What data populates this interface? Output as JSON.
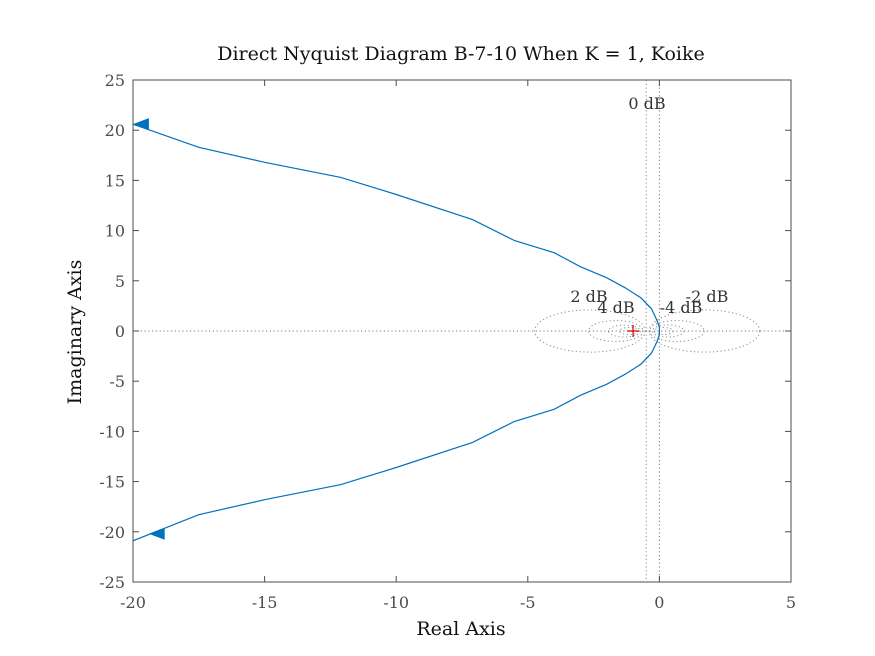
{
  "chart_data": {
    "type": "line",
    "title": "Direct Nyquist Diagram B-7-10 When K = 1, Koike",
    "xlabel": "Real Axis",
    "ylabel": "Imaginary Axis",
    "xlim": [
      -20,
      5
    ],
    "ylim": [
      -25,
      25
    ],
    "xticks": [
      -20,
      -15,
      -10,
      -5,
      0,
      5
    ],
    "yticks": [
      -25,
      -20,
      -15,
      -10,
      -5,
      0,
      5,
      10,
      15,
      20,
      25
    ],
    "xtick_labels": [
      "-20",
      "-15",
      "-10",
      "-5",
      "0",
      "5"
    ],
    "ytick_labels": [
      "-25",
      "-20",
      "-15",
      "-10",
      "-5",
      "0",
      "5",
      "10",
      "15",
      "20",
      "25"
    ],
    "grid": false,
    "colors": {
      "curve": "#0072bd",
      "critical_point": "#cc0000",
      "m_circles": "#8c8c8c",
      "axes": "#4d4d4d"
    },
    "series": [
      {
        "points": [
          [
            -20.0,
            20.6
          ],
          [
            -17.5,
            18.3
          ],
          [
            -15.0,
            16.8
          ],
          [
            -12.1,
            15.3
          ],
          [
            -10.0,
            13.6
          ],
          [
            -7.1,
            11.1
          ],
          [
            -5.5,
            9.0
          ],
          [
            -4.0,
            7.8
          ],
          [
            -3.0,
            6.4
          ],
          [
            -2.0,
            5.3
          ],
          [
            -1.3,
            4.3
          ],
          [
            -0.7,
            3.3
          ],
          [
            -0.3,
            2.2
          ],
          [
            -0.1,
            1.1
          ],
          [
            0.0,
            0.4
          ],
          [
            0.0,
            -0.4
          ],
          [
            -0.1,
            -1.1
          ],
          [
            -0.3,
            -2.2
          ],
          [
            -0.7,
            -3.3
          ],
          [
            -1.3,
            -4.3
          ],
          [
            -2.0,
            -5.3
          ],
          [
            -3.0,
            -6.4
          ],
          [
            -4.0,
            -7.8
          ],
          [
            -5.5,
            -9.0
          ],
          [
            -7.1,
            -11.1
          ],
          [
            -10.0,
            -13.6
          ],
          [
            -12.1,
            -15.3
          ],
          [
            -15.0,
            -16.8
          ],
          [
            -17.5,
            -18.3
          ],
          [
            -20.0,
            -20.9
          ]
        ],
        "arrows": [
          {
            "x": -19.7,
            "y": 20.6,
            "direction": "left"
          },
          {
            "x": -19.1,
            "y": -20.2,
            "direction": "left"
          }
        ]
      }
    ],
    "critical_point": {
      "x": -1,
      "y": 0,
      "marker": "+"
    },
    "m_circles": [
      {
        "label": "0 dB",
        "center_x": -0.5,
        "center_y": 0,
        "radius": null
      },
      {
        "label": "2 dB",
        "center_x": -2.64,
        "center_y": 0,
        "radius": 2.1
      },
      {
        "label": "-2 dB",
        "center_x": 1.71,
        "center_y": 0,
        "radius": 2.1
      },
      {
        "label": "4 dB",
        "center_x": -1.66,
        "center_y": 0,
        "radius": 1.04
      },
      {
        "label": "-4 dB",
        "center_x": 0.66,
        "center_y": 0,
        "radius": 1.04
      },
      {
        "label": "",
        "center_x": -1.33,
        "center_y": 0,
        "radius": 0.6
      },
      {
        "label": "",
        "center_x": 0.33,
        "center_y": 0,
        "radius": 0.6
      },
      {
        "label": "",
        "center_x": -1.16,
        "center_y": 0,
        "radius": 0.35
      },
      {
        "label": "",
        "center_x": 0.16,
        "center_y": 0,
        "radius": 0.35
      }
    ]
  }
}
